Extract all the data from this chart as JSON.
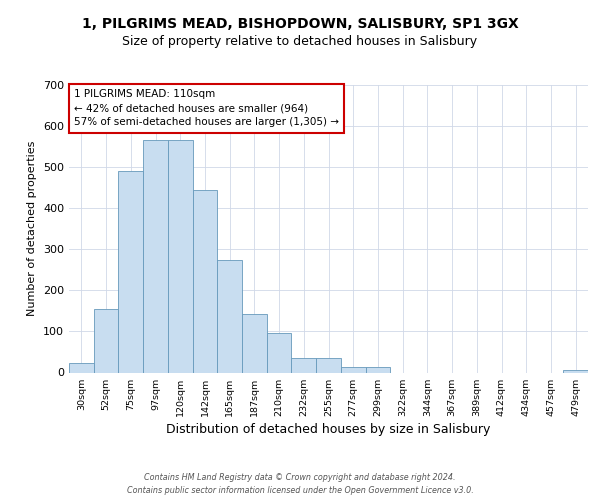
{
  "title1": "1, PILGRIMS MEAD, BISHOPDOWN, SALISBURY, SP1 3GX",
  "title2": "Size of property relative to detached houses in Salisbury",
  "xlabel": "Distribution of detached houses by size in Salisbury",
  "ylabel": "Number of detached properties",
  "categories": [
    "30sqm",
    "52sqm",
    "75sqm",
    "97sqm",
    "120sqm",
    "142sqm",
    "165sqm",
    "187sqm",
    "210sqm",
    "232sqm",
    "255sqm",
    "277sqm",
    "299sqm",
    "322sqm",
    "344sqm",
    "367sqm",
    "389sqm",
    "412sqm",
    "434sqm",
    "457sqm",
    "479sqm"
  ],
  "values": [
    22,
    155,
    490,
    565,
    565,
    445,
    273,
    143,
    97,
    36,
    36,
    13,
    13,
    0,
    0,
    0,
    0,
    0,
    0,
    0,
    7
  ],
  "bar_color": "#c8ddf0",
  "bar_edge_color": "#6699bb",
  "annotation_line1": "1 PILGRIMS MEAD: 110sqm",
  "annotation_line2": "← 42% of detached houses are smaller (964)",
  "annotation_line3": "57% of semi-detached houses are larger (1,305) →",
  "annotation_box_facecolor": "#ffffff",
  "annotation_box_edgecolor": "#cc0000",
  "footer1": "Contains HM Land Registry data © Crown copyright and database right 2024.",
  "footer2": "Contains public sector information licensed under the Open Government Licence v3.0.",
  "ylim": [
    0,
    700
  ],
  "yticks": [
    0,
    100,
    200,
    300,
    400,
    500,
    600,
    700
  ],
  "bg_color": "#ffffff",
  "plot_bg_color": "#ffffff",
  "grid_color": "#d0d8e8",
  "title1_fontsize": 10,
  "title2_fontsize": 9
}
